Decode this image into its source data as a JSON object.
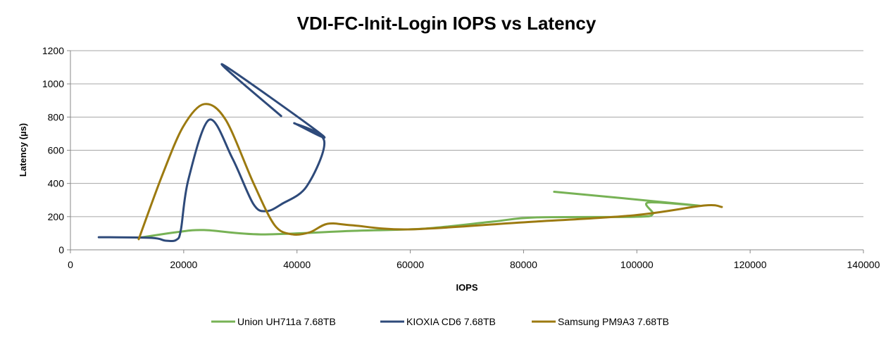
{
  "chart_data": {
    "type": "line",
    "title": "VDI-FC-Init-Login IOPS vs Latency",
    "xlabel": "IOPS",
    "ylabel": "Latency (µs)",
    "xlim": [
      0,
      140000
    ],
    "ylim": [
      0,
      1200
    ],
    "xticks": [
      0,
      20000,
      40000,
      60000,
      80000,
      100000,
      120000,
      140000
    ],
    "yticks": [
      0,
      200,
      400,
      600,
      800,
      1000,
      1200
    ],
    "grid": "horizontal",
    "legend": "bottom",
    "series": [
      {
        "name": "Union UH711a 7.68TB",
        "color": "#77b255",
        "points": [
          [
            12000,
            72
          ],
          [
            18700,
            106
          ],
          [
            23600,
            119
          ],
          [
            33600,
            93
          ],
          [
            49700,
            114
          ],
          [
            62200,
            127
          ],
          [
            74600,
            170
          ],
          [
            82000,
            195
          ],
          [
            99500,
            199
          ],
          [
            102800,
            215
          ],
          [
            102000,
            285
          ],
          [
            110700,
            267
          ],
          [
            85400,
            350
          ]
        ]
      },
      {
        "name": "KIOXIA CD6 7.68TB",
        "color": "#2e4a7a",
        "points": [
          [
            5000,
            76
          ],
          [
            14300,
            72
          ],
          [
            16800,
            55
          ],
          [
            18700,
            60
          ],
          [
            19500,
            120
          ],
          [
            20800,
            420
          ],
          [
            24500,
            784
          ],
          [
            28600,
            551
          ],
          [
            32300,
            276
          ],
          [
            34600,
            233
          ],
          [
            37300,
            276
          ],
          [
            41700,
            382
          ],
          [
            44800,
            657
          ],
          [
            39500,
            763
          ],
          [
            44500,
            690
          ],
          [
            26800,
            1118
          ],
          [
            37200,
            806
          ]
        ]
      },
      {
        "name": "Samsung PM9A3 7.68TB",
        "color": "#9c7a10",
        "points": [
          [
            12060,
            64
          ],
          [
            16160,
            445
          ],
          [
            19900,
            742
          ],
          [
            23600,
            878
          ],
          [
            27400,
            784
          ],
          [
            32300,
            403
          ],
          [
            36060,
            148
          ],
          [
            39200,
            93
          ],
          [
            42300,
            106
          ],
          [
            45400,
            157
          ],
          [
            49700,
            148
          ],
          [
            59700,
            123
          ],
          [
            79600,
            165
          ],
          [
            99500,
            208
          ],
          [
            111900,
            267
          ],
          [
            115000,
            258
          ]
        ]
      }
    ]
  }
}
